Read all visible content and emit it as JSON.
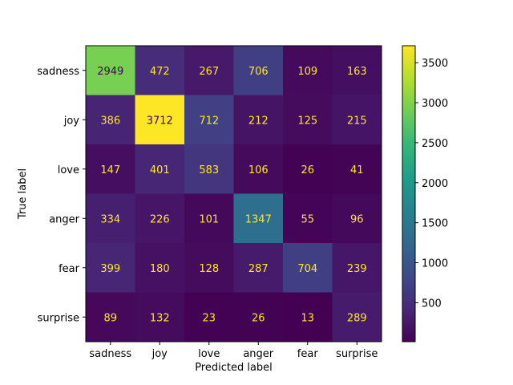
{
  "chart_data": {
    "type": "heatmap",
    "title": "",
    "xlabel": "Predicted label",
    "ylabel": "True label",
    "x_categories": [
      "sadness",
      "joy",
      "love",
      "anger",
      "fear",
      "surprise"
    ],
    "y_categories": [
      "sadness",
      "joy",
      "love",
      "anger",
      "fear",
      "surprise"
    ],
    "values": [
      [
        2949,
        472,
        267,
        706,
        109,
        163
      ],
      [
        386,
        3712,
        712,
        212,
        125,
        215
      ],
      [
        147,
        401,
        583,
        106,
        26,
        41
      ],
      [
        334,
        226,
        101,
        1347,
        55,
        96
      ],
      [
        399,
        180,
        128,
        287,
        704,
        239
      ],
      [
        89,
        132,
        23,
        26,
        13,
        289
      ]
    ],
    "colormap": "viridis",
    "colorbar": {
      "range": [
        13,
        3712
      ],
      "ticks": [
        500,
        1000,
        1500,
        2000,
        2500,
        3000,
        3500
      ]
    },
    "grid": false,
    "text_colors": {
      "on_dark": "#fde725",
      "on_light": "#440154"
    }
  }
}
